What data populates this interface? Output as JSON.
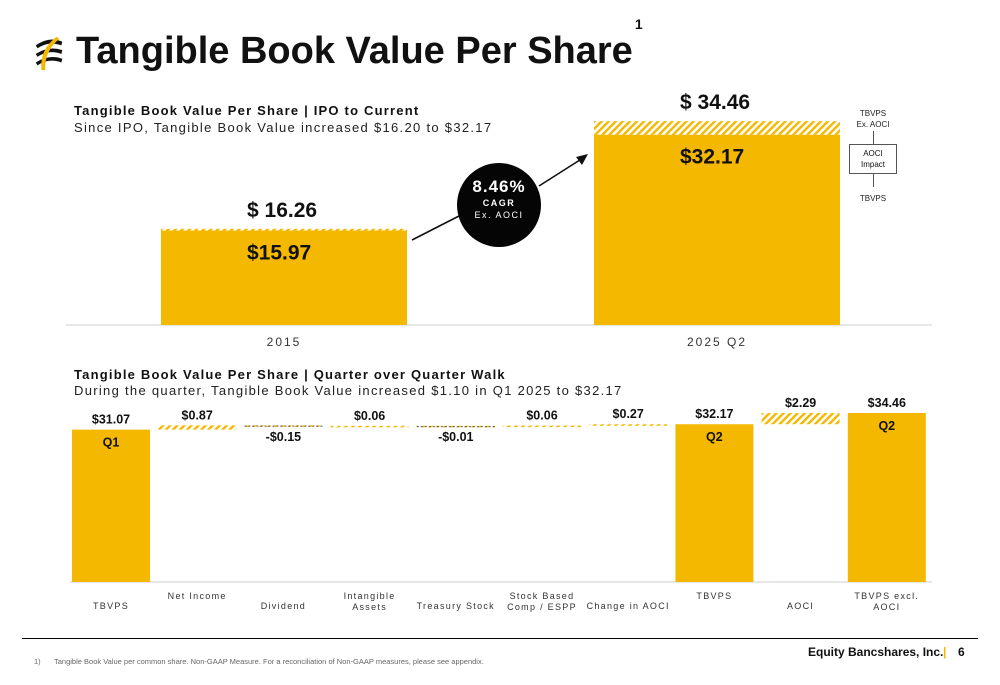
{
  "header": {
    "title": "Tangible Book Value Per Share",
    "title_sup": "1"
  },
  "colors": {
    "accent": "#f5b800",
    "aoci_hatch": "#f5b800",
    "dark": "#050505"
  },
  "chart_data": [
    {
      "type": "bar",
      "title": "Tangible Book Value Per Share | IPO to Current",
      "subtitle": "Since IPO, Tangible Book Value increased $16.20 to $32.17",
      "categories": [
        "2015",
        "2025 Q2"
      ],
      "series": [
        {
          "name": "TBVPS",
          "values": [
            15.97,
            32.17
          ]
        },
        {
          "name": "AOCI Impact",
          "values": [
            0.29,
            2.29
          ]
        }
      ],
      "tbvps_labels": [
        "$15.97",
        "$32.17"
      ],
      "total_labels": [
        "$ 16.26",
        "$ 34.46"
      ],
      "totals": [
        16.26,
        34.46
      ],
      "ylim": [
        0,
        36
      ],
      "annotation": {
        "value": "8.46%",
        "label": "CAGR",
        "sublabel": "Ex. AOCI"
      },
      "legend": {
        "top": "TBVPS\nEx. AOCI",
        "top_line1": "TBVPS",
        "top_line2": "Ex. AOCI",
        "box_line1": "AOCI",
        "box_line2": "Impact",
        "bottom": "TBVPS"
      }
    },
    {
      "type": "bar",
      "title": "Tangible Book Value Per Share | Quarter over Quarter Walk",
      "subtitle": "During the quarter, Tangible Book Value increased $1.10 in Q1 2025 to $32.17",
      "categories": [
        "TBVPS",
        "Net Income",
        "Dividend",
        "Intangible Assets",
        "Treasury Stock",
        "Stock Based Comp / ESPP",
        "Change in AOCI",
        "TBVPS",
        "AOCI",
        "TBVPS excl. AOCI"
      ],
      "category_lines": [
        [
          "TBVPS"
        ],
        [
          "Net Income"
        ],
        [
          "Dividend"
        ],
        [
          "Intangible",
          "Assets"
        ],
        [
          "Treasury Stock"
        ],
        [
          "Stock Based",
          "Comp / ESPP"
        ],
        [
          "Change in AOCI"
        ],
        [
          "TBVPS"
        ],
        [
          "AOCI"
        ],
        [
          "TBVPS excl.",
          "AOCI"
        ]
      ],
      "values": [
        31.07,
        0.87,
        -0.15,
        0.06,
        -0.01,
        0.06,
        0.27,
        32.17,
        2.29,
        34.46
      ],
      "value_labels": [
        "$31.07",
        "$0.87",
        "-$0.15",
        "$0.06",
        "-$0.01",
        "$0.06",
        "$0.27",
        "$32.17",
        "$2.29",
        "$34.46"
      ],
      "kinds": [
        "total",
        "step",
        "step",
        "step",
        "step",
        "step",
        "step",
        "total",
        "aoci",
        "total"
      ],
      "bar_labels": [
        "Q1",
        "",
        "",
        "",
        "",
        "",
        "",
        "Q2",
        "",
        "Q2"
      ]
    }
  ],
  "footer": {
    "footnote_num": "1)",
    "footnote": "Tangible Book Value per common share. Non-GAAP Measure. For a reconciliation of Non-GAAP measures, please see appendix.",
    "company": "Equity Bancshares, Inc.",
    "separator": "|",
    "page": "6"
  }
}
